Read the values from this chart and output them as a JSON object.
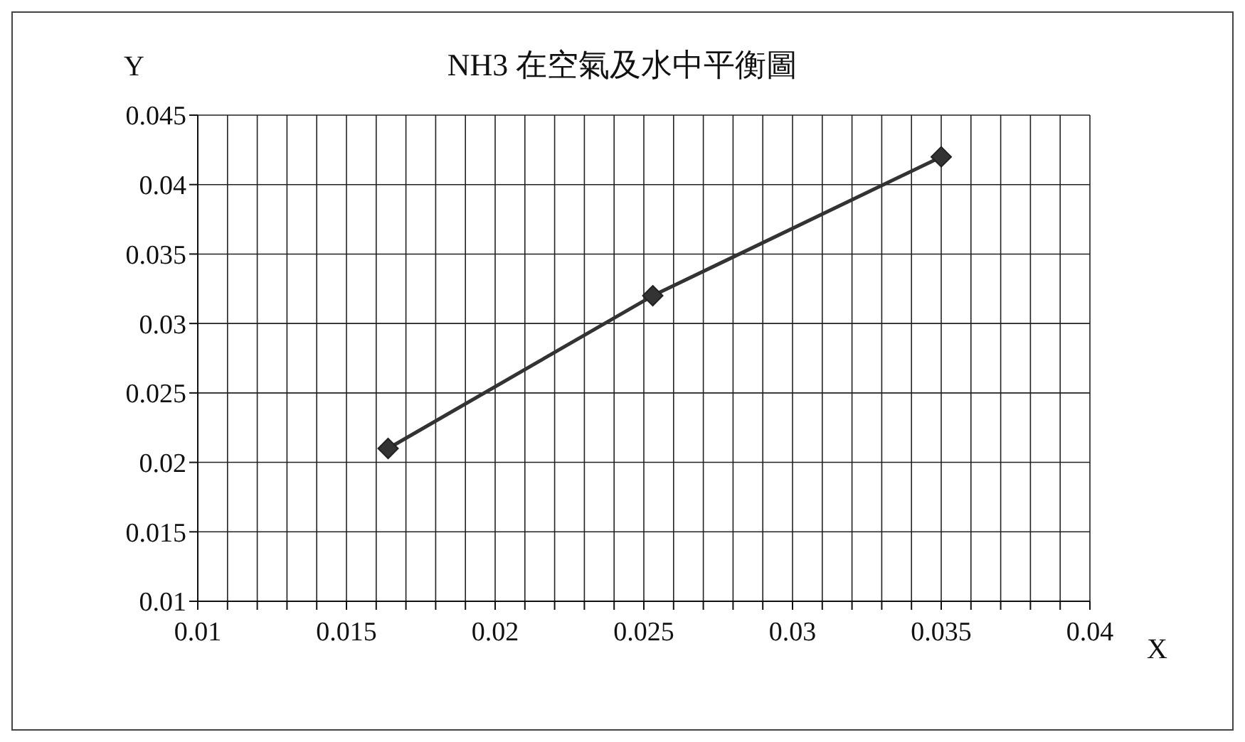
{
  "chart_data": {
    "type": "line",
    "title": "NH3  在空氣及水中平衡圖",
    "xlabel": "X",
    "ylabel": "Y",
    "x": [
      0.0164,
      0.0253,
      0.035
    ],
    "series": [
      {
        "color": "#333333",
        "values": [
          0.021,
          0.032,
          0.042
        ]
      }
    ],
    "xlim": [
      0.01,
      0.04
    ],
    "xticks": [
      0.01,
      {
        "value": 0.011,
        "label": null
      },
      {
        "value": 0.012,
        "label": null
      },
      {
        "value": 0.013,
        "label": null
      },
      {
        "value": 0.014,
        "label": null
      },
      0.015,
      {
        "value": 0.016,
        "label": null
      },
      {
        "value": 0.017,
        "label": null
      },
      {
        "value": 0.018,
        "label": null
      },
      {
        "value": 0.019,
        "label": null
      },
      0.02,
      {
        "value": 0.021,
        "label": null
      },
      {
        "value": 0.022,
        "label": null
      },
      {
        "value": 0.023,
        "label": null
      },
      {
        "value": 0.024,
        "label": null
      },
      0.025,
      {
        "value": 0.026,
        "label": null
      },
      {
        "value": 0.027,
        "label": null
      },
      {
        "value": 0.028,
        "label": null
      },
      {
        "value": 0.029,
        "label": null
      },
      0.03,
      {
        "value": 0.031,
        "label": null
      },
      {
        "value": 0.032,
        "label": null
      },
      {
        "value": 0.033,
        "label": null
      },
      {
        "value": 0.034,
        "label": null
      },
      0.035,
      {
        "value": 0.036,
        "label": null
      },
      {
        "value": 0.037,
        "label": null
      },
      {
        "value": 0.038,
        "label": null
      },
      {
        "value": 0.039,
        "label": null
      },
      0.04
    ],
    "ylim": [
      0.01,
      0.045
    ],
    "yticks": [
      0.01,
      0.015,
      0.02,
      0.025,
      0.03,
      0.035,
      0.04,
      0.045
    ],
    "grid": true,
    "legend": false,
    "marker": "diamond",
    "line_style": "solid"
  }
}
